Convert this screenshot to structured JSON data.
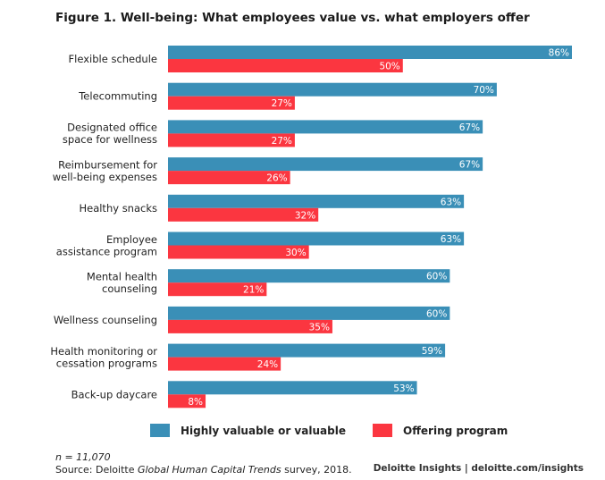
{
  "title": "Figure 1. Well-being: What employees value vs. what employers offer",
  "chart_data": {
    "type": "bar",
    "orientation": "horizontal",
    "categories": [
      [
        "Flexible schedule"
      ],
      [
        "Telecommuting"
      ],
      [
        "Designated office",
        "space for wellness"
      ],
      [
        "Reimbursement for",
        "well-being expenses"
      ],
      [
        "Healthy snacks"
      ],
      [
        "Employee",
        "assistance program"
      ],
      [
        "Mental health",
        "counseling"
      ],
      [
        "Wellness counseling"
      ],
      [
        "Health monitoring or",
        "cessation programs"
      ],
      [
        "Back-up daycare"
      ]
    ],
    "series": [
      {
        "name": "Highly valuable or valuable",
        "color": "#3a8fb7",
        "values": [
          86,
          70,
          67,
          67,
          63,
          63,
          60,
          60,
          59,
          53
        ]
      },
      {
        "name": "Offering program",
        "color": "#fb3640",
        "values": [
          50,
          27,
          27,
          26,
          32,
          30,
          21,
          35,
          24,
          8
        ]
      }
    ],
    "value_suffix": "%",
    "xlim": [
      0,
      86
    ]
  },
  "legend": {
    "valuable": "Highly valuable or valuable",
    "offering": "Offering program"
  },
  "footnote": "n = 11,070",
  "source": {
    "prefix": "Source: Deloitte ",
    "italic": "Global Human Capital Trends",
    "suffix": " survey, 2018."
  },
  "brand": "Deloitte Insights | deloitte.com/insights"
}
